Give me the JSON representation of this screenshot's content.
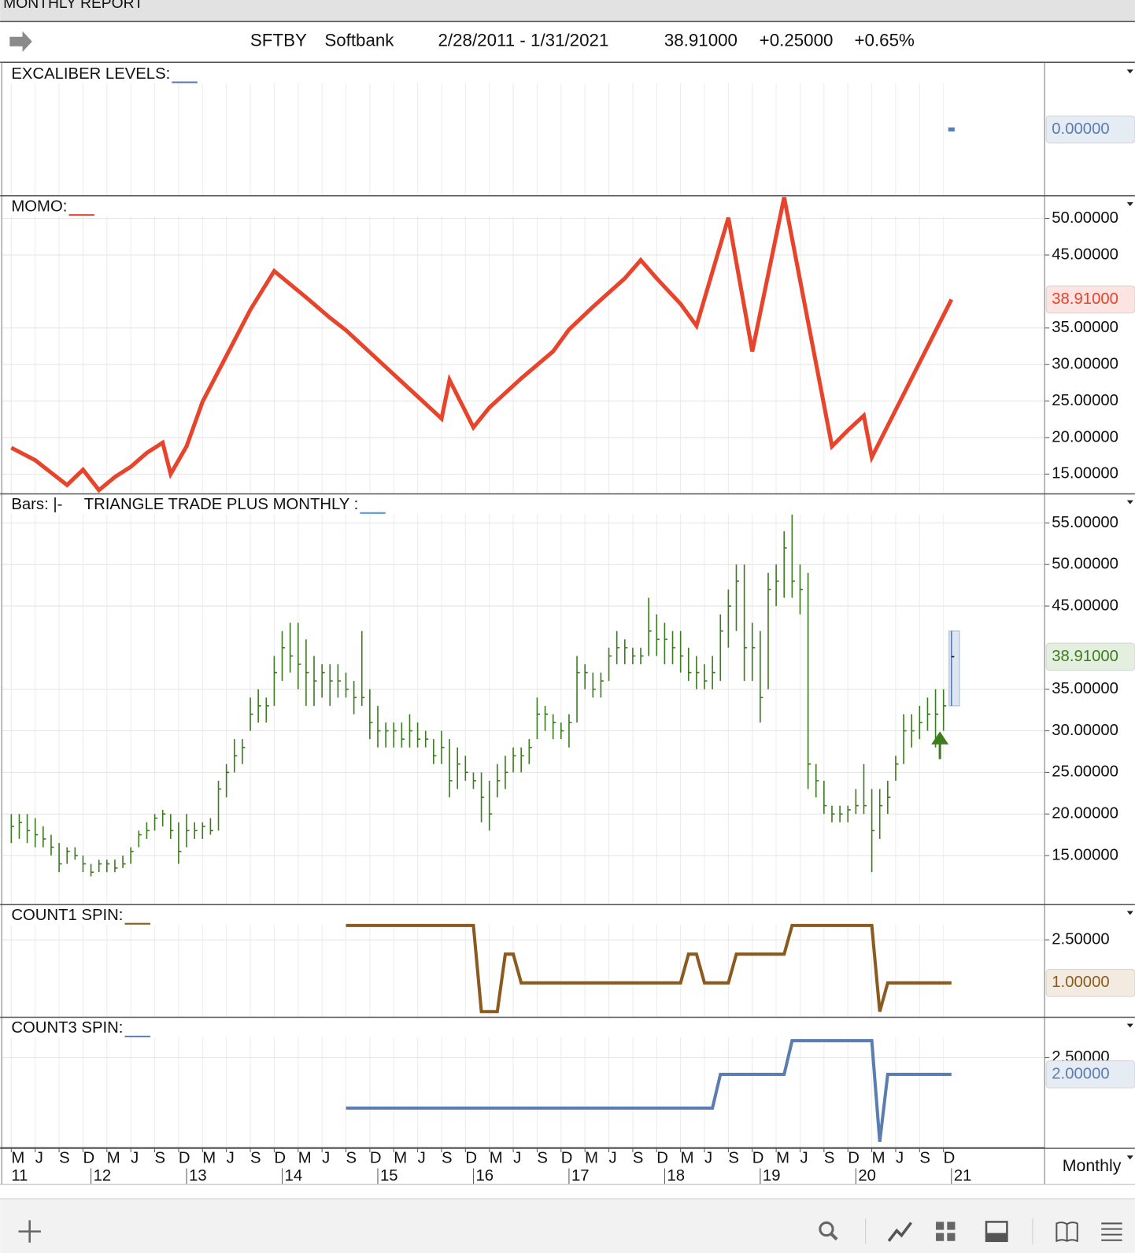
{
  "window_title": "MONTHLY REPORT",
  "header": {
    "symbol": "SFTBY",
    "name": "Softbank",
    "range": "2/28/2011 - 1/31/2021",
    "last": "38.91000",
    "change": "+0.25000",
    "change_pct": "+0.65%"
  },
  "period": "Monthly",
  "x_axis": {
    "months": [
      {
        "value": "2011-03",
        "label": "M"
      },
      {
        "value": "2011-06",
        "label": "J"
      },
      {
        "value": "2011-09",
        "label": "S"
      },
      {
        "value": "2011-12",
        "label": "D"
      },
      {
        "value": "2012-03",
        "label": "M"
      },
      {
        "value": "2012-06",
        "label": "J"
      },
      {
        "value": "2012-09",
        "label": "S"
      },
      {
        "value": "2012-12",
        "label": "D"
      },
      {
        "value": "2013-03",
        "label": "M"
      },
      {
        "value": "2013-06",
        "label": "J"
      },
      {
        "value": "2013-09",
        "label": "S"
      },
      {
        "value": "2013-12",
        "label": "D"
      },
      {
        "value": "2014-03",
        "label": "M"
      },
      {
        "value": "2014-06",
        "label": "J"
      },
      {
        "value": "2014-09",
        "label": "S"
      },
      {
        "value": "2014-12",
        "label": "D"
      },
      {
        "value": "2015-03",
        "label": "M"
      },
      {
        "value": "2015-06",
        "label": "J"
      },
      {
        "value": "2015-09",
        "label": "S"
      },
      {
        "value": "2015-12",
        "label": "D"
      },
      {
        "value": "2016-03",
        "label": "M"
      },
      {
        "value": "2016-06",
        "label": "J"
      },
      {
        "value": "2016-09",
        "label": "S"
      },
      {
        "value": "2016-12",
        "label": "D"
      },
      {
        "value": "2017-03",
        "label": "M"
      },
      {
        "value": "2017-06",
        "label": "J"
      },
      {
        "value": "2017-09",
        "label": "S"
      },
      {
        "value": "2017-12",
        "label": "D"
      },
      {
        "value": "2018-03",
        "label": "M"
      },
      {
        "value": "2018-06",
        "label": "J"
      },
      {
        "value": "2018-09",
        "label": "S"
      },
      {
        "value": "2018-12",
        "label": "D"
      },
      {
        "value": "2019-03",
        "label": "M"
      },
      {
        "value": "2019-06",
        "label": "J"
      },
      {
        "value": "2019-09",
        "label": "S"
      },
      {
        "value": "2019-12",
        "label": "D"
      },
      {
        "value": "2020-03",
        "label": "M"
      },
      {
        "value": "2020-06",
        "label": "J"
      },
      {
        "value": "2020-09",
        "label": "S"
      },
      {
        "value": "2020-12",
        "label": "D"
      }
    ],
    "years": [
      {
        "value": "2011-03",
        "label": "11"
      },
      {
        "value": "2012-01",
        "label": "12"
      },
      {
        "value": "2013-01",
        "label": "13"
      },
      {
        "value": "2014-01",
        "label": "14"
      },
      {
        "value": "2015-01",
        "label": "15"
      },
      {
        "value": "2016-01",
        "label": "16"
      },
      {
        "value": "2017-01",
        "label": "17"
      },
      {
        "value": "2018-01",
        "label": "18"
      },
      {
        "value": "2019-01",
        "label": "19"
      },
      {
        "value": "2020-01",
        "label": "20"
      },
      {
        "value": "2021-01",
        "label": "21"
      }
    ]
  },
  "chart_data": [
    {
      "type": "line",
      "title": "EXCALIBER LEVELS:",
      "color": "#5b7db1",
      "ylim": [
        -1,
        1
      ],
      "yticks": [],
      "x": [
        "2021-01"
      ],
      "values": [
        0
      ],
      "last_value": {
        "value": 0,
        "label": "0.00000"
      },
      "label_bg": "#e6ecf3"
    },
    {
      "type": "line",
      "title": "MOMO:",
      "color": "#e8432b",
      "ylim": [
        12.4,
        53
      ],
      "yticks": [
        {
          "value": 15,
          "label": "15.00000"
        },
        {
          "value": 20,
          "label": "20.00000"
        },
        {
          "value": 25,
          "label": "25.00000"
        },
        {
          "value": 30,
          "label": "30.00000"
        },
        {
          "value": 35,
          "label": "35.00000"
        },
        {
          "value": 45,
          "label": "45.00000"
        },
        {
          "value": 50,
          "label": "50.00000"
        }
      ],
      "x": [
        "2011-03",
        "2011-06",
        "2011-08",
        "2011-10",
        "2011-12",
        "2012-02",
        "2012-04",
        "2012-06",
        "2012-08",
        "2012-10",
        "2012-11",
        "2013-01",
        "2013-03",
        "2013-06",
        "2013-09",
        "2013-12",
        "2014-04",
        "2014-07",
        "2014-09",
        "2015-09",
        "2015-10",
        "2016-01",
        "2016-03",
        "2016-07",
        "2016-11",
        "2017-01",
        "2017-04",
        "2017-08",
        "2017-10",
        "2017-12",
        "2018-03",
        "2018-05",
        "2018-09",
        "2018-12",
        "2019-04",
        "2019-10",
        "2019-12",
        "2020-02",
        "2020-03",
        "2021-01"
      ],
      "values": [
        18.6,
        16.9,
        15.2,
        13.5,
        15.6,
        12.8,
        14.6,
        16.0,
        17.9,
        19.3,
        15.0,
        18.8,
        24.9,
        31.2,
        37.5,
        42.8,
        39.2,
        36.4,
        34.7,
        22.6,
        27.9,
        21.4,
        24.1,
        28.1,
        31.8,
        34.8,
        37.9,
        41.8,
        44.3,
        41.8,
        38.3,
        35.3,
        50.1,
        31.8,
        52.9,
        18.8,
        21.0,
        23.0,
        17.3,
        38.91
      ],
      "last_value": {
        "value": 38.91,
        "label": "38.91000"
      },
      "label_bg": "#fbe4e2"
    },
    {
      "type": "ohlc",
      "bars_label": "Bars: |-",
      "title": "TRIANGLE TRADE PLUS MONTHLY :",
      "color": "#3d7d1f",
      "current_color": "#5b7db1",
      "swatch_color": "#5b9bd5",
      "ylim": [
        9.2,
        58.4
      ],
      "yticks": [
        {
          "value": 15,
          "label": "15.00000"
        },
        {
          "value": 20,
          "label": "20.00000"
        },
        {
          "value": 25,
          "label": "25.00000"
        },
        {
          "value": 30,
          "label": "30.00000"
        },
        {
          "value": 35,
          "label": "35.00000"
        },
        {
          "value": 45,
          "label": "45.00000"
        },
        {
          "value": 50,
          "label": "50.00000"
        },
        {
          "value": 55,
          "label": "55.00000"
        }
      ],
      "x": [
        "2011-03",
        "2011-04",
        "2011-05",
        "2011-06",
        "2011-07",
        "2011-08",
        "2011-09",
        "2011-10",
        "2011-11",
        "2011-12",
        "2012-01",
        "2012-02",
        "2012-03",
        "2012-04",
        "2012-05",
        "2012-06",
        "2012-07",
        "2012-08",
        "2012-09",
        "2012-10",
        "2012-11",
        "2012-12",
        "2013-01",
        "2013-02",
        "2013-03",
        "2013-04",
        "2013-05",
        "2013-06",
        "2013-07",
        "2013-08",
        "2013-09",
        "2013-10",
        "2013-11",
        "2013-12",
        "2014-01",
        "2014-02",
        "2014-03",
        "2014-04",
        "2014-05",
        "2014-06",
        "2014-07",
        "2014-08",
        "2014-09",
        "2014-10",
        "2014-11",
        "2014-12",
        "2015-01",
        "2015-02",
        "2015-03",
        "2015-04",
        "2015-05",
        "2015-06",
        "2015-07",
        "2015-08",
        "2015-09",
        "2015-10",
        "2015-11",
        "2015-12",
        "2016-01",
        "2016-02",
        "2016-03",
        "2016-04",
        "2016-05",
        "2016-06",
        "2016-07",
        "2016-08",
        "2016-09",
        "2016-10",
        "2016-11",
        "2016-12",
        "2017-01",
        "2017-02",
        "2017-03",
        "2017-04",
        "2017-05",
        "2017-06",
        "2017-07",
        "2017-08",
        "2017-09",
        "2017-10",
        "2017-11",
        "2017-12",
        "2018-01",
        "2018-02",
        "2018-03",
        "2018-04",
        "2018-05",
        "2018-06",
        "2018-07",
        "2018-08",
        "2018-09",
        "2018-10",
        "2018-11",
        "2018-12",
        "2019-01",
        "2019-02",
        "2019-03",
        "2019-04",
        "2019-05",
        "2019-06",
        "2019-07",
        "2019-08",
        "2019-09",
        "2019-10",
        "2019-11",
        "2019-12",
        "2020-01",
        "2020-02",
        "2020-03",
        "2020-04",
        "2020-05",
        "2020-06",
        "2020-07",
        "2020-08",
        "2020-09",
        "2020-10",
        "2020-11",
        "2020-12",
        "2021-01"
      ],
      "high": [
        20,
        20,
        20,
        19.5,
        18.5,
        17.5,
        16.5,
        16,
        16,
        15,
        14,
        14.5,
        14.5,
        14.5,
        15,
        16,
        18,
        19,
        20,
        20.5,
        20,
        19,
        20,
        19,
        19,
        19.5,
        24,
        26,
        29,
        29,
        34,
        35,
        34,
        39,
        42,
        43,
        43,
        41,
        39,
        38,
        38,
        38,
        37,
        36,
        42,
        35,
        33,
        31,
        31,
        31,
        32,
        31,
        30,
        29,
        30,
        29,
        28,
        27,
        25,
        25,
        24,
        26,
        27,
        28,
        28,
        29,
        34,
        33,
        32,
        31,
        32,
        39,
        38,
        37,
        37,
        40,
        42,
        41,
        40,
        40,
        46,
        44,
        43,
        42,
        42,
        40,
        39,
        38,
        39,
        44,
        47,
        50,
        50,
        43,
        42,
        49,
        50,
        54,
        56,
        50,
        49,
        26,
        24,
        21,
        21,
        21,
        23,
        26,
        23,
        23,
        24,
        27,
        32,
        32,
        33,
        34,
        35,
        35,
        42
      ],
      "low": [
        16.5,
        17,
        16.5,
        16,
        16,
        15,
        13,
        14,
        14.5,
        13,
        12.5,
        13,
        13,
        13,
        13.5,
        14,
        16,
        17,
        18,
        18.5,
        17,
        14,
        16,
        17,
        17,
        17.5,
        18,
        22,
        25,
        26,
        30,
        31,
        31,
        33,
        36,
        37,
        35,
        33,
        33,
        34,
        33,
        34,
        34,
        32,
        33,
        29,
        28,
        28,
        28,
        28,
        28,
        28,
        28,
        26,
        26,
        22,
        23,
        24,
        23,
        19,
        18,
        22,
        23,
        25,
        25,
        26,
        29,
        30,
        29,
        29,
        28,
        31,
        35,
        34,
        34,
        36,
        38,
        38,
        38,
        38,
        39,
        39,
        38,
        38,
        37,
        36,
        35,
        35,
        35,
        36,
        40,
        42,
        36,
        36,
        31,
        35,
        45,
        46,
        46,
        44,
        23,
        22,
        20,
        19,
        19,
        19,
        20,
        20,
        13,
        17,
        20,
        24,
        26,
        28,
        29,
        30,
        28,
        30,
        33
      ],
      "close": [
        18.5,
        19,
        18,
        17.5,
        17,
        16,
        14,
        15.5,
        15,
        14,
        13,
        14,
        14,
        13.5,
        14,
        15.5,
        17.5,
        18,
        19.5,
        20,
        18,
        15.5,
        18,
        18,
        18.5,
        18,
        23,
        25,
        27,
        28,
        32,
        33,
        33,
        37,
        40,
        39,
        38,
        37,
        36,
        37,
        36,
        36,
        35,
        34,
        34,
        31,
        30,
        30,
        30,
        29,
        30,
        29,
        29,
        27,
        28,
        24,
        26,
        25,
        24,
        22,
        20,
        24,
        25,
        27,
        27,
        28,
        32,
        32,
        31,
        30,
        31,
        37,
        37,
        35,
        36,
        39,
        40,
        40,
        39,
        39,
        42,
        41,
        41,
        40,
        39,
        37,
        37,
        36,
        37,
        42,
        45,
        48,
        40,
        40,
        34,
        47,
        48,
        52,
        48,
        47,
        26,
        24,
        21,
        20,
        20,
        20.5,
        21,
        21,
        18,
        21,
        22,
        26,
        30,
        30,
        31,
        32,
        32,
        33,
        38.91
      ],
      "last_value": {
        "value": 38.91,
        "label": "38.91000"
      },
      "label_bg": "#e5efdf"
    },
    {
      "type": "step",
      "title": "COUNT1 SPIN:",
      "color": "#8b5a1e",
      "ylim": [
        -0.17,
        3.7
      ],
      "yticks": [
        {
          "value": 2.5,
          "label": "2.50000"
        }
      ],
      "x": [
        "2014-09",
        "2016-01",
        "2016-02",
        "2016-04",
        "2016-05",
        "2016-06",
        "2016-07",
        "2018-03",
        "2018-04",
        "2018-05",
        "2018-06",
        "2018-09",
        "2018-10",
        "2019-04",
        "2019-05",
        "2020-03",
        "2020-04",
        "2020-05",
        "2021-01"
      ],
      "values": [
        3,
        3,
        0,
        0,
        2,
        2,
        1,
        1,
        2,
        2,
        1,
        1,
        2,
        2,
        3,
        3,
        0,
        1,
        1
      ],
      "last_value": {
        "value": 1,
        "label": "1.00000"
      },
      "label_bg": "#f3ebe0"
    },
    {
      "type": "step",
      "title": "COUNT3 SPIN:",
      "color": "#5b7db1",
      "ylim": [
        -0.17,
        3.67
      ],
      "yticks": [
        {
          "value": 2.5,
          "label": "2.50000"
        }
      ],
      "x": [
        "2014-09",
        "2018-07",
        "2018-08",
        "2019-04",
        "2019-05",
        "2020-03",
        "2020-04",
        "2020-05",
        "2021-01"
      ],
      "values": [
        1,
        1,
        2,
        2,
        3,
        3,
        0,
        2,
        2
      ],
      "last_value": {
        "value": 2,
        "label": "2.00000"
      },
      "label_bg": "#e6ecf3"
    }
  ]
}
